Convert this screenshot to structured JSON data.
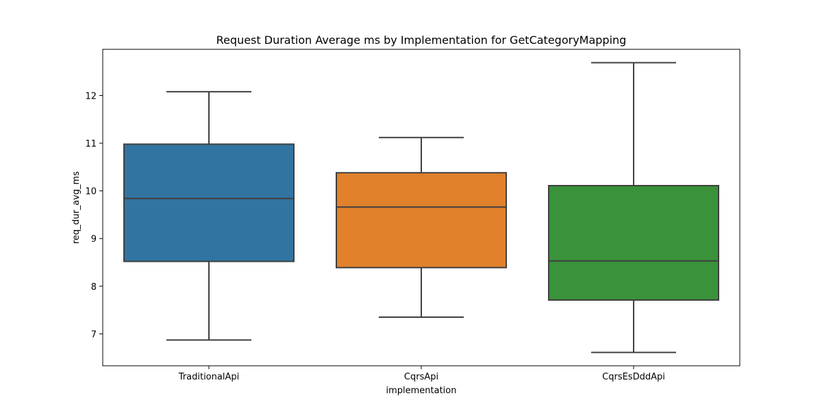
{
  "chart_data": {
    "type": "box",
    "title": "Request Duration Average ms by Implementation for GetCategoryMapping",
    "xlabel": "implementation",
    "ylabel": "req_dur_avg_ms",
    "ylim": [
      6.33,
      12.97
    ],
    "yticks": [
      7,
      8,
      9,
      10,
      11,
      12
    ],
    "grid": false,
    "categories": [
      "TraditionalApi",
      "CqrsApi",
      "CqrsEsDddApi"
    ],
    "series": [
      {
        "category": "TraditionalApi",
        "whisker_low": 6.87,
        "q1": 8.52,
        "median": 9.84,
        "q3": 10.98,
        "whisker_high": 12.08,
        "color": "#3274a1"
      },
      {
        "category": "CqrsApi",
        "whisker_low": 7.35,
        "q1": 8.39,
        "median": 9.66,
        "q3": 10.38,
        "whisker_high": 11.12,
        "color": "#e1812c"
      },
      {
        "category": "CqrsEsDddApi",
        "whisker_low": 6.61,
        "q1": 7.71,
        "median": 8.53,
        "q3": 10.11,
        "whisker_high": 12.69,
        "color": "#3a923a"
      }
    ],
    "line_color": "#3f3f3f"
  }
}
